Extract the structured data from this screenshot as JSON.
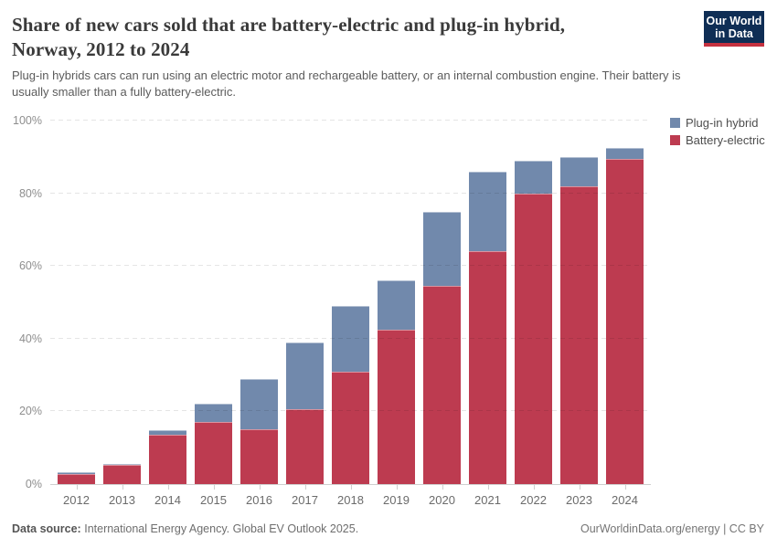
{
  "header": {
    "title_lines": [
      "Share of new cars sold that are battery-electric and plug-in hybrid,",
      "Norway, 2012 to 2024"
    ],
    "subtitle": "Plug-in hybrids cars can run using an electric motor and rechargeable battery, or an internal combustion engine. Their battery is usually smaller than a fully battery-electric."
  },
  "logo": {
    "line1": "Our World",
    "line2": "in Data",
    "bg_color": "#0f2e55",
    "accent_color": "#c5313f"
  },
  "chart_data": {
    "type": "bar",
    "stacked": true,
    "title": "Share of new cars sold that are battery-electric and plug-in hybrid, Norway, 2012 to 2024",
    "xlabel": "",
    "ylabel": "",
    "categories": [
      "2012",
      "2013",
      "2014",
      "2015",
      "2016",
      "2017",
      "2018",
      "2019",
      "2020",
      "2021",
      "2022",
      "2023",
      "2024"
    ],
    "series": [
      {
        "name": "Plug-in hybrid",
        "color": "#7189ac",
        "stack_position": "top",
        "values": [
          0.4,
          0.3,
          1.4,
          5,
          14,
          18.5,
          18,
          13.5,
          20.5,
          22,
          9,
          8,
          3
        ]
      },
      {
        "name": "Battery-electric",
        "color": "#bd3b50",
        "stack_position": "bottom",
        "values": [
          2.8,
          5.2,
          13.5,
          17,
          15,
          20.5,
          31,
          42.5,
          54.5,
          64,
          80,
          82,
          89.5
        ]
      }
    ],
    "stacked_totals": [
      3.2,
      5.5,
      14.9,
      22,
      29,
      39,
      49,
      56,
      75,
      86,
      89,
      90,
      92.5
    ],
    "ylim": [
      0,
      100
    ],
    "ytick_values": [
      0,
      20,
      40,
      60,
      80,
      100
    ],
    "ytick_labels": [
      "0%",
      "20%",
      "40%",
      "60%",
      "80%",
      "100%"
    ],
    "grid": "horizontal dashed",
    "legend_position": "top-right"
  },
  "footer": {
    "source_label": "Data source:",
    "source_text": "International Energy Agency. Global EV Outlook 2025.",
    "right_text": "OurWorldinData.org/energy | CC BY"
  }
}
